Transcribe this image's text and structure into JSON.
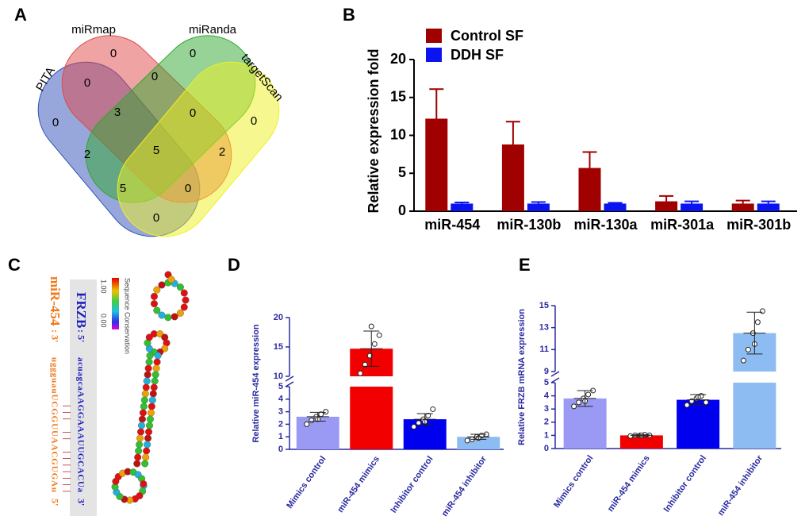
{
  "panel_labels": [
    "A",
    "B",
    "C",
    "D",
    "E"
  ],
  "venn": {
    "sets": [
      "PITA",
      "miRmap",
      "miRanda",
      "targetScan"
    ],
    "regions": [
      0,
      0,
      0,
      0,
      0,
      0,
      3,
      0,
      2,
      5,
      2,
      5,
      0,
      0
    ]
  },
  "sequence": {
    "target_name": "FRZB",
    "target_end": ": 5'",
    "target_seq": "acuagcaAAGGAAAUUGCACUa",
    "target_tail": "3'",
    "mirna_name": "miR-454",
    "mirna_end": ": 3'",
    "mirna_seq": "uggguauUCGGUUAACGUGAu",
    "mirna_tail": "5'",
    "pairing": "||| || |||||||",
    "scale_max": "1.00",
    "scale_min": "0.00",
    "scale_label": "Sequence Conservation"
  },
  "chart_data": [
    {
      "type": "bar",
      "ylabel": "Relative expression fold",
      "categories": [
        "miR-454",
        "miR-130b",
        "miR-130a",
        "miR-301a",
        "miR-301b"
      ],
      "series": [
        {
          "name": "Control SF",
          "color": "#a00000",
          "values": [
            12.2,
            8.8,
            5.7,
            1.3,
            1.0
          ],
          "errors": [
            3.9,
            3.0,
            2.1,
            0.7,
            0.4
          ]
        },
        {
          "name": "DDH SF",
          "color": "#0a14f0",
          "values": [
            1.0,
            1.0,
            1.0,
            1.0,
            1.0
          ],
          "errors": [
            0.15,
            0.2,
            0.1,
            0.3,
            0.3
          ]
        }
      ],
      "ylim": [
        0,
        20
      ],
      "yticks": [
        0,
        5,
        10,
        15,
        20
      ],
      "legend": "top-left"
    },
    {
      "type": "broken_bar",
      "ylabel": "Relative miR-454 expression",
      "categories": [
        "Mimics control",
        "miR-454 mimics",
        "Inhibitor control",
        "miR-454 inhibitor"
      ],
      "colors": [
        "#9a9af5",
        "#f20000",
        "#0000ee",
        "#8dbcf2"
      ],
      "values": [
        2.6,
        14.7,
        2.4,
        1.0
      ],
      "errors": [
        0.35,
        3.0,
        0.45,
        0.2
      ],
      "points": [
        [
          2.0,
          2.3,
          2.6,
          2.8,
          3.0,
          2.4
        ],
        [
          10.5,
          12.0,
          13.5,
          15.5,
          17.0,
          18.5
        ],
        [
          1.8,
          2.1,
          2.4,
          2.7,
          3.2,
          2.2
        ],
        [
          0.7,
          0.8,
          1.0,
          1.1,
          1.2,
          0.9
        ]
      ],
      "ylim": [
        0,
        20
      ],
      "y_break": [
        5,
        10
      ],
      "yticks": [
        0,
        1,
        2,
        3,
        4,
        5,
        10,
        15,
        20
      ]
    },
    {
      "type": "broken_bar",
      "ylabel": "Relative FRZB mRNA expression",
      "categories": [
        "Mimics control",
        "miR-454 mimics",
        "Inhibitor control",
        "miR-454 inhibitor"
      ],
      "colors": [
        "#9a9af5",
        "#f20000",
        "#0000ee",
        "#8dbcf2"
      ],
      "values": [
        3.8,
        1.0,
        3.7,
        12.5
      ],
      "errors": [
        0.6,
        0.05,
        0.4,
        1.9
      ],
      "points": [
        [
          3.2,
          3.5,
          3.8,
          4.1,
          4.4,
          3.6
        ],
        [
          0.95,
          1.0,
          1.0,
          1.05,
          1.0,
          1.0
        ],
        [
          3.3,
          3.6,
          3.8,
          4.0,
          3.5,
          3.9
        ],
        [
          10.0,
          11.0,
          12.5,
          13.5,
          14.5,
          11.5
        ]
      ],
      "ylim": [
        0,
        15
      ],
      "y_break": [
        5,
        9
      ],
      "yticks": [
        0,
        1,
        2,
        3,
        4,
        5,
        9,
        11,
        13,
        15
      ]
    }
  ]
}
